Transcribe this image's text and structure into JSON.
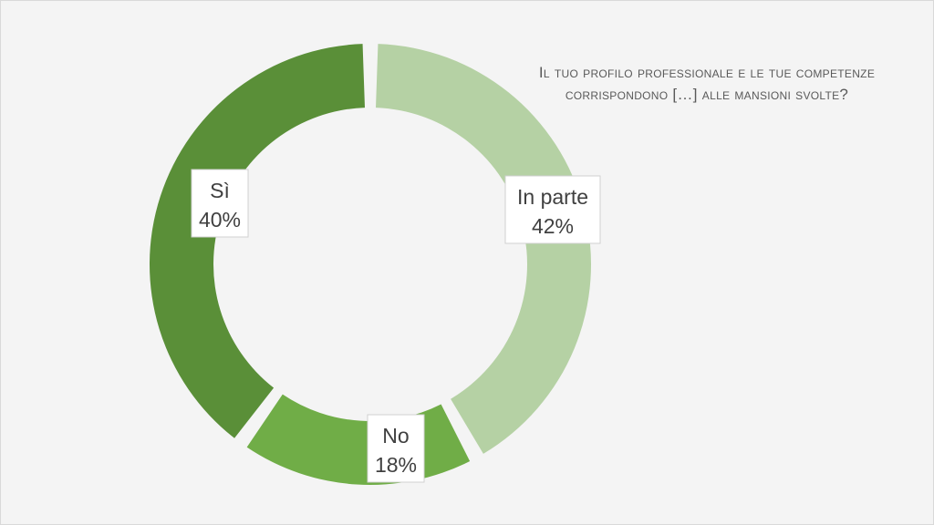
{
  "chart_data": {
    "type": "pie",
    "variant": "doughnut",
    "title": "Il tuo profilo professionale e le tue competenze corrispondono […] alle mansioni svolte?",
    "categories": [
      "In parte",
      "No",
      "Sì"
    ],
    "values": [
      42,
      18,
      40
    ],
    "value_labels": [
      "42%",
      "18%",
      "40%"
    ],
    "colors": [
      "#b5d1a4",
      "#70ad47",
      "#5a8f38"
    ],
    "legend": "none",
    "data_labels": "category-and-percent"
  }
}
